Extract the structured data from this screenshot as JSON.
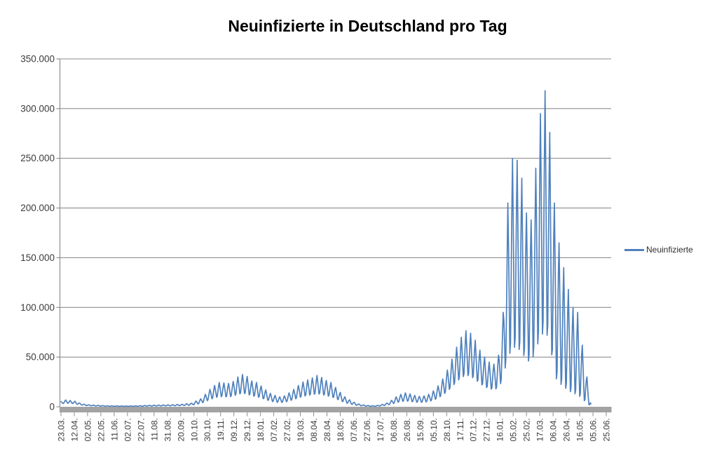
{
  "title": "Neuinfizierte in Deutschland pro Tag",
  "legend": {
    "label": "Neuinfizierte",
    "position": "right"
  },
  "colors": {
    "series_line": "#4f81bd",
    "gridline": "#8e8e8e",
    "axis_bar": "#a3a3a3",
    "axis_line": "#8e8e8e",
    "tick_label_text": "#3b3b3b",
    "title_text": "#000000",
    "background": "#ffffff"
  },
  "chart_data": {
    "type": "line",
    "title": "Neuinfizierte in Deutschland pro Tag",
    "xlabel": "",
    "ylabel": "",
    "grid": true,
    "legend_position": "right",
    "ylim": [
      0,
      350000
    ],
    "y_tick_values": [
      0,
      50000,
      100000,
      150000,
      200000,
      250000,
      300000,
      350000
    ],
    "y_tick_labels": [
      "0",
      "50.000",
      "100.000",
      "150.000",
      "200.000",
      "250.000",
      "300.000",
      "350.000"
    ],
    "x_tick_labels": [
      "23.03.",
      "12.04.",
      "02.05.",
      "22.05.",
      "11.06.",
      "02.07.",
      "22.07.",
      "11.08.",
      "31.08.",
      "20.09.",
      "10.10.",
      "30.10.",
      "19.11.",
      "09.12.",
      "29.12.",
      "18.01.",
      "07.02.",
      "27.02.",
      "19.03.",
      "08.04.",
      "28.04.",
      "18.05.",
      "07.06.",
      "27.06.",
      "17.07.",
      "06.08.",
      "26.08.",
      "15.09.",
      "05.10.",
      "28.10.",
      "17.11.",
      "07.12.",
      "27.12.",
      "16.01.",
      "05.02.",
      "25.02.",
      "17.03.",
      "06.04.",
      "26.04.",
      "16.05.",
      "05.06.",
      "25.06."
    ],
    "x_tick_interval_days": 20,
    "x_axis_total_days": 820,
    "series": [
      {
        "name": "Neuinfizierte",
        "color": "#4f81bd",
        "data_start_label": "23.03.",
        "data_end_day": 797,
        "max_value": 318000,
        "weekly_peak_envelope": [
          [
            0,
            5200
          ],
          [
            7,
            6900
          ],
          [
            14,
            6300
          ],
          [
            21,
            5600
          ],
          [
            28,
            3800
          ],
          [
            35,
            2600
          ],
          [
            42,
            2000
          ],
          [
            56,
            1400
          ],
          [
            70,
            1000
          ],
          [
            84,
            900
          ],
          [
            98,
            750
          ],
          [
            112,
            900
          ],
          [
            126,
            1300
          ],
          [
            140,
            1600
          ],
          [
            154,
            1900
          ],
          [
            168,
            2100
          ],
          [
            182,
            2600
          ],
          [
            196,
            3600
          ],
          [
            210,
            8000
          ],
          [
            217,
            12500
          ],
          [
            224,
            17500
          ],
          [
            231,
            21500
          ],
          [
            238,
            24500
          ],
          [
            245,
            24000
          ],
          [
            252,
            23500
          ],
          [
            259,
            25500
          ],
          [
            266,
            30000
          ],
          [
            273,
            32500
          ],
          [
            280,
            30500
          ],
          [
            287,
            26000
          ],
          [
            294,
            24500
          ],
          [
            301,
            21000
          ],
          [
            308,
            17000
          ],
          [
            315,
            13500
          ],
          [
            322,
            11500
          ],
          [
            329,
            10000
          ],
          [
            336,
            11000
          ],
          [
            343,
            14000
          ],
          [
            350,
            17500
          ],
          [
            357,
            21500
          ],
          [
            364,
            25000
          ],
          [
            371,
            27000
          ],
          [
            378,
            29000
          ],
          [
            385,
            31500
          ],
          [
            392,
            29500
          ],
          [
            399,
            26500
          ],
          [
            406,
            24500
          ],
          [
            413,
            19500
          ],
          [
            420,
            14500
          ],
          [
            427,
            10000
          ],
          [
            434,
            7000
          ],
          [
            441,
            4500
          ],
          [
            448,
            2800
          ],
          [
            455,
            1900
          ],
          [
            462,
            1300
          ],
          [
            469,
            1000
          ],
          [
            476,
            1400
          ],
          [
            483,
            2400
          ],
          [
            490,
            3800
          ],
          [
            497,
            6500
          ],
          [
            504,
            10000
          ],
          [
            511,
            12500
          ],
          [
            518,
            14000
          ],
          [
            525,
            13000
          ],
          [
            532,
            11500
          ],
          [
            539,
            10500
          ],
          [
            546,
            11000
          ],
          [
            553,
            12500
          ],
          [
            560,
            16000
          ],
          [
            567,
            21000
          ],
          [
            574,
            28000
          ],
          [
            581,
            37000
          ],
          [
            588,
            48000
          ],
          [
            595,
            60000
          ],
          [
            602,
            70000
          ],
          [
            609,
            76500
          ],
          [
            616,
            74000
          ],
          [
            623,
            67000
          ],
          [
            630,
            57000
          ],
          [
            637,
            50000
          ],
          [
            644,
            45000
          ],
          [
            651,
            43000
          ],
          [
            658,
            52000
          ],
          [
            665,
            95000
          ],
          [
            672,
            205000
          ],
          [
            679,
            250000
          ],
          [
            686,
            248000
          ],
          [
            693,
            230000
          ],
          [
            700,
            195000
          ],
          [
            707,
            188000
          ],
          [
            714,
            240000
          ],
          [
            721,
            295000
          ],
          [
            728,
            318000
          ],
          [
            735,
            276000
          ],
          [
            742,
            205000
          ],
          [
            749,
            165000
          ],
          [
            756,
            140000
          ],
          [
            763,
            118000
          ],
          [
            770,
            100000
          ],
          [
            777,
            95000
          ],
          [
            784,
            62000
          ],
          [
            791,
            30000
          ],
          [
            797,
            4000
          ]
        ],
        "weekly_trough_ratio": [
          [
            0,
            0.55
          ],
          [
            180,
            0.46
          ],
          [
            210,
            0.42
          ],
          [
            600,
            0.42
          ],
          [
            652,
            0.4
          ],
          [
            665,
            0.3
          ],
          [
            672,
            0.24
          ],
          [
            735,
            0.24
          ],
          [
            745,
            0.15
          ],
          [
            797,
            0.12
          ]
        ],
        "weekly_shape": [
          0,
          0.3,
          0.65,
          1,
          0.95,
          0.6,
          0.25
        ]
      }
    ]
  }
}
